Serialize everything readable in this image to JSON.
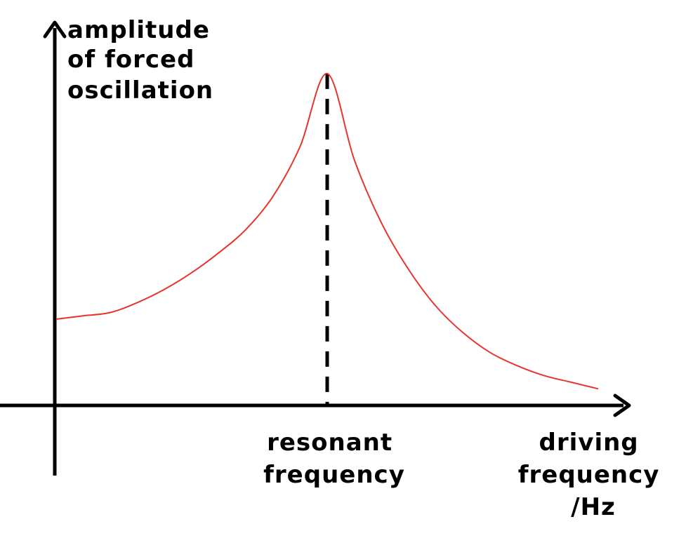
{
  "chart_data": {
    "type": "line",
    "title": "",
    "ylabel_lines": [
      "amplitude",
      "of forced",
      "oscillation"
    ],
    "xlabel_lines": [
      "driving",
      "frequency",
      "/Hz"
    ],
    "annotation_lines": [
      "resonant",
      "frequency"
    ],
    "grid": false,
    "legend": "none",
    "tick_labels": false,
    "xlim": [
      0,
      100
    ],
    "ylim": [
      0,
      100
    ],
    "series": [
      {
        "x": [
          0,
          5,
          10,
          15,
          20,
          25,
          30,
          35,
          40,
          45,
          50,
          55,
          60,
          65,
          70,
          75,
          80,
          85,
          90,
          95,
          100
        ],
        "values": [
          26,
          27,
          28,
          31,
          35,
          40,
          46,
          53,
          63,
          78,
          100,
          74,
          55,
          41,
          30,
          22,
          16,
          12,
          9,
          7,
          5
        ]
      }
    ],
    "peak_x": 50
  },
  "colors": {
    "curve": "#e8352b",
    "axes": "#000000",
    "marker": "#000000"
  }
}
